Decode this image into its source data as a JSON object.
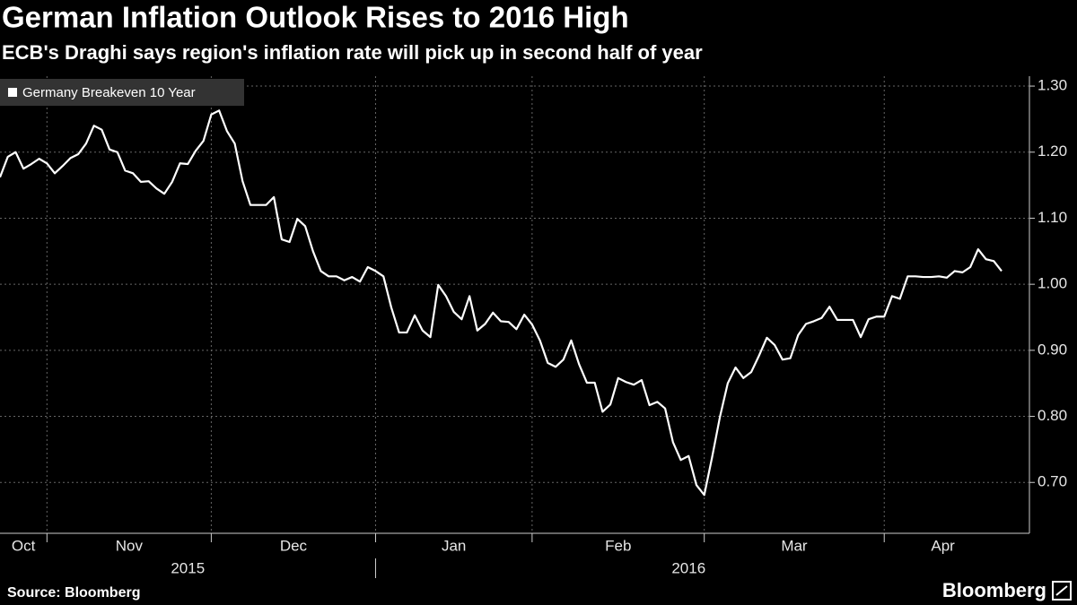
{
  "chart_data": {
    "type": "line",
    "title": "German Inflation Outlook Rises to 2016 High",
    "subtitle": "ECB's Draghi says region's inflation rate will pick up in second half of year",
    "source": "Source: Bloomberg",
    "brand": "Bloomberg",
    "categories": [
      "Oct",
      null,
      null,
      null,
      null,
      null,
      "Nov",
      null,
      null,
      null,
      null,
      null,
      null,
      null,
      null,
      null,
      null,
      null,
      null,
      null,
      null,
      null,
      null,
      null,
      null,
      null,
      null,
      "Dec",
      null,
      null,
      null,
      null,
      null,
      null,
      null,
      null,
      null,
      null,
      null,
      null,
      null,
      null,
      null,
      null,
      null,
      null,
      null,
      null,
      "Jan",
      null,
      null,
      null,
      null,
      null,
      null,
      null,
      null,
      null,
      null,
      null,
      null,
      null,
      null,
      null,
      null,
      null,
      null,
      null,
      "Feb",
      null,
      null,
      null,
      null,
      null,
      null,
      null,
      null,
      null,
      null,
      null,
      null,
      null,
      null,
      null,
      null,
      null,
      null,
      null,
      null,
      null,
      "Mar",
      null,
      null,
      null,
      null,
      null,
      null,
      null,
      null,
      null,
      null,
      null,
      null,
      null,
      null,
      null,
      null,
      null,
      null,
      null,
      null,
      null,
      null,
      "Apr",
      null,
      null,
      null,
      null,
      null,
      null,
      null,
      null,
      null,
      null,
      null,
      null,
      null,
      null,
      null
    ],
    "years": [
      {
        "label": "2015",
        "from": 0
      },
      {
        "label": "2016",
        "from": 48
      }
    ],
    "series": [
      {
        "name": "Germany Breakeven 10 Year",
        "color": "#ffffff",
        "values": [
          1.162,
          1.193,
          1.2,
          1.175,
          1.182,
          1.19,
          1.183,
          1.168,
          1.179,
          1.191,
          1.197,
          1.213,
          1.24,
          1.234,
          1.204,
          1.2,
          1.172,
          1.168,
          1.155,
          1.156,
          1.145,
          1.137,
          1.155,
          1.183,
          1.182,
          1.202,
          1.217,
          1.257,
          1.263,
          1.232,
          1.213,
          1.156,
          1.12,
          1.12,
          1.12,
          1.132,
          1.068,
          1.064,
          1.099,
          1.088,
          1.05,
          1.02,
          1.012,
          1.012,
          1.006,
          1.011,
          1.004,
          1.026,
          1.02,
          1.012,
          0.965,
          0.927,
          0.927,
          0.953,
          0.93,
          0.92,
          0.999,
          0.982,
          0.958,
          0.947,
          0.982,
          0.93,
          0.94,
          0.957,
          0.944,
          0.943,
          0.932,
          0.954,
          0.939,
          0.915,
          0.881,
          0.875,
          0.886,
          0.915,
          0.879,
          0.851,
          0.851,
          0.807,
          0.818,
          0.858,
          0.852,
          0.848,
          0.855,
          0.817,
          0.822,
          0.812,
          0.761,
          0.734,
          0.74,
          0.696,
          0.681,
          0.738,
          0.799,
          0.85,
          0.874,
          0.858,
          0.867,
          0.892,
          0.919,
          0.908,
          0.886,
          0.888,
          0.923,
          0.94,
          0.944,
          0.949,
          0.966,
          0.946,
          0.946,
          0.946,
          0.92,
          0.947,
          0.951,
          0.951,
          0.982,
          0.978,
          1.012,
          1.012,
          1.011,
          1.011,
          1.012,
          1.01,
          1.02,
          1.018,
          1.026,
          1.053,
          1.038,
          1.035,
          1.02
        ]
      }
    ],
    "ylim": [
      0.623,
      1.315
    ],
    "yticks": [
      {
        "value": 0.7,
        "label": "0.70"
      },
      {
        "value": 0.8,
        "label": "0.80"
      },
      {
        "value": 0.9,
        "label": "0.90"
      },
      {
        "value": 1.0,
        "label": "1.00"
      },
      {
        "value": 1.1,
        "label": "1.10"
      },
      {
        "value": 1.2,
        "label": "1.20"
      },
      {
        "value": 1.3,
        "label": "1.30"
      }
    ],
    "grid": true,
    "legend": "top-left"
  }
}
